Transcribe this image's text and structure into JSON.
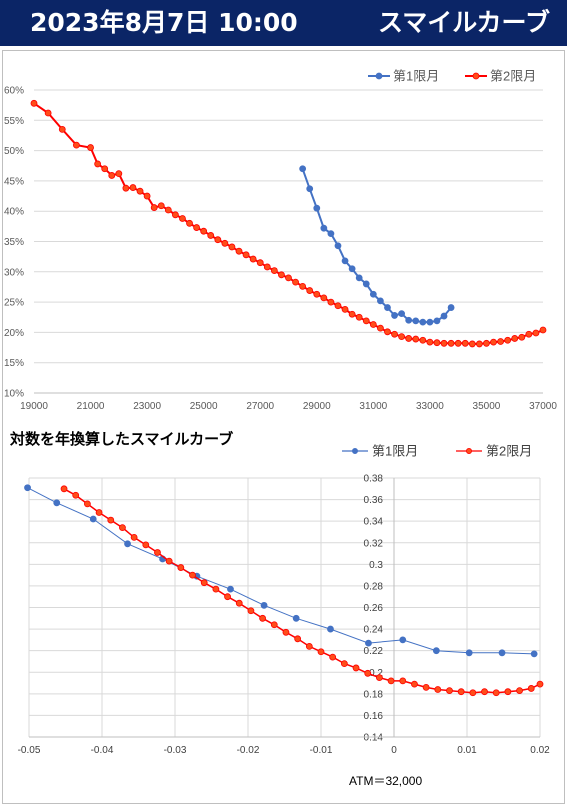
{
  "header": {
    "date": "2023年8月7日 10:00",
    "title": "スマイルカーブ"
  },
  "colors": {
    "header_bg": "#0b2566",
    "series1": "#4472c4",
    "series2": "#ff0000",
    "series2_marker": "#ff4d1a"
  },
  "chart_data": [
    {
      "type": "line",
      "title": "",
      "xlabel": "",
      "ylabel": "",
      "xlim": [
        19000,
        37000
      ],
      "ylim": [
        0.1,
        0.6
      ],
      "x_ticks": [
        "19000",
        "21000",
        "23000",
        "25000",
        "27000",
        "29000",
        "31000",
        "33000",
        "35000",
        "37000"
      ],
      "y_ticks": [
        "10%",
        "15%",
        "20%",
        "25%",
        "30%",
        "35%",
        "40%",
        "45%",
        "50%",
        "55%",
        "60%"
      ],
      "grid": "horizontal",
      "legend": "top-right",
      "series": [
        {
          "name": "第1限月",
          "color": "#4472c4",
          "x": [
            28500,
            28750,
            29000,
            29250,
            29500,
            29750,
            30000,
            30250,
            30500,
            30750,
            31000,
            31250,
            31500,
            31750,
            32000,
            32250,
            32500,
            32750,
            33000,
            33250,
            33500,
            33750
          ],
          "y": [
            0.47,
            0.437,
            0.405,
            0.372,
            0.363,
            0.343,
            0.318,
            0.305,
            0.29,
            0.28,
            0.263,
            0.252,
            0.241,
            0.228,
            0.231,
            0.22,
            0.219,
            0.217,
            0.217,
            0.219,
            0.227,
            0.241
          ]
        },
        {
          "name": "第2限月",
          "color": "#ff0000",
          "x": [
            19000,
            19500,
            20000,
            20500,
            21000,
            21250,
            21500,
            21750,
            22000,
            22250,
            22500,
            22750,
            23000,
            23250,
            23500,
            23750,
            24000,
            24250,
            24500,
            24750,
            25000,
            25250,
            25500,
            25750,
            26000,
            26250,
            26500,
            26750,
            27000,
            27250,
            27500,
            27750,
            28000,
            28250,
            28500,
            28750,
            29000,
            29250,
            29500,
            29750,
            30000,
            30250,
            30500,
            30750,
            31000,
            31250,
            31500,
            31750,
            32000,
            32250,
            32500,
            32750,
            33000,
            33250,
            33500,
            33750,
            34000,
            34250,
            34500,
            34750,
            35000,
            35250,
            35500,
            35750,
            36000,
            36250,
            36500,
            36750,
            37000
          ],
          "y": [
            0.578,
            0.562,
            0.535,
            0.509,
            0.505,
            0.478,
            0.47,
            0.459,
            0.462,
            0.438,
            0.439,
            0.433,
            0.425,
            0.406,
            0.409,
            0.402,
            0.394,
            0.388,
            0.38,
            0.373,
            0.367,
            0.36,
            0.353,
            0.347,
            0.341,
            0.334,
            0.328,
            0.321,
            0.315,
            0.308,
            0.302,
            0.295,
            0.29,
            0.283,
            0.276,
            0.269,
            0.263,
            0.257,
            0.25,
            0.244,
            0.238,
            0.23,
            0.225,
            0.219,
            0.213,
            0.207,
            0.201,
            0.197,
            0.193,
            0.19,
            0.189,
            0.187,
            0.184,
            0.183,
            0.182,
            0.182,
            0.182,
            0.182,
            0.181,
            0.181,
            0.182,
            0.184,
            0.185,
            0.187,
            0.19,
            0.192,
            0.197,
            0.199,
            0.204
          ]
        }
      ]
    },
    {
      "type": "line",
      "title": "対数を年換算したスマイルカーブ",
      "xlabel": "",
      "ylabel": "",
      "xlim": [
        -0.05,
        0.02
      ],
      "ylim": [
        0.14,
        0.38
      ],
      "x_ticks": [
        "-0.05",
        "-0.04",
        "-0.03",
        "-0.02",
        "-0.01",
        "0",
        "0.01",
        "0.02"
      ],
      "y_ticks": [
        "0.14",
        "0.16",
        "0.18",
        "0.2",
        "0.22",
        "0.24",
        "0.26",
        "0.28",
        "0.3",
        "0.32",
        "0.34",
        "0.36",
        "0.38"
      ],
      "grid": "both",
      "legend": "top-right",
      "annotation": "ATM＝32,000",
      "series": [
        {
          "name": "第1限月",
          "color": "#4472c4",
          "x": [
            -0.0502,
            -0.0462,
            -0.0412,
            -0.0365,
            -0.0317,
            -0.027,
            -0.0224,
            -0.0178,
            -0.0134,
            -0.0087,
            -0.0035,
            0.0012,
            0.0058,
            0.0103,
            0.0148,
            0.0192
          ],
          "y": [
            0.371,
            0.357,
            0.342,
            0.319,
            0.305,
            0.289,
            0.277,
            0.262,
            0.25,
            0.24,
            0.227,
            0.23,
            0.22,
            0.218,
            0.218,
            0.217
          ]
        },
        {
          "name": "第2限月",
          "color": "#ff0000",
          "x": [
            -0.0452,
            -0.0436,
            -0.042,
            -0.0404,
            -0.0388,
            -0.0372,
            -0.0356,
            -0.034,
            -0.0324,
            -0.0308,
            -0.0292,
            -0.0276,
            -0.026,
            -0.0244,
            -0.0228,
            -0.0212,
            -0.0196,
            -0.018,
            -0.0164,
            -0.0148,
            -0.0132,
            -0.0116,
            -0.01,
            -0.0084,
            -0.0068,
            -0.0052,
            -0.0036,
            -0.002,
            -0.0004,
            0.0012,
            0.0028,
            0.0044,
            0.006,
            0.0076,
            0.0092,
            0.0108,
            0.0124,
            0.014,
            0.0156,
            0.0172,
            0.0188,
            0.02
          ],
          "y": [
            0.37,
            0.364,
            0.356,
            0.348,
            0.341,
            0.334,
            0.325,
            0.318,
            0.311,
            0.303,
            0.297,
            0.29,
            0.283,
            0.277,
            0.27,
            0.264,
            0.257,
            0.25,
            0.244,
            0.237,
            0.231,
            0.224,
            0.219,
            0.214,
            0.208,
            0.204,
            0.199,
            0.195,
            0.192,
            0.192,
            0.189,
            0.186,
            0.184,
            0.183,
            0.182,
            0.181,
            0.182,
            0.181,
            0.182,
            0.183,
            0.185,
            0.189
          ]
        }
      ]
    }
  ]
}
